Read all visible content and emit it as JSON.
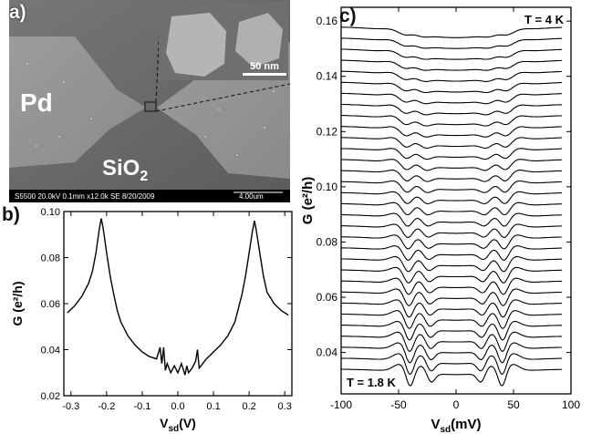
{
  "panel_a": {
    "label": "a)",
    "electrode_label": "Pd",
    "substrate_label": "SiO",
    "substrate_subscript": "2",
    "inset_scale": "50 nm",
    "info_bar": {
      "sem_info": "S5500 20.0kV 0.1mm x12.0k SE 8/20/2009",
      "scale": "4.00um"
    }
  },
  "panel_b": {
    "label": "b)"
  },
  "panel_c": {
    "label": "c)",
    "temp_top": "T = 4 K",
    "temp_bottom": "T = 1.8 K"
  },
  "chart_data": [
    {
      "type": "line",
      "panel": "b",
      "xlabel": "V",
      "xlabel_sub": "sd",
      "xlabel_unit": "(V)",
      "ylabel": "G (e²/h)",
      "xlim": [
        -0.32,
        0.32
      ],
      "ylim": [
        0.02,
        0.1
      ],
      "xticks": [
        -0.3,
        -0.2,
        -0.1,
        0.0,
        0.1,
        0.2,
        0.3
      ],
      "xtick_labels": [
        "-0.3",
        "-0.2",
        "-0.1",
        "0.0",
        "0.1",
        "0.2",
        "0.3"
      ],
      "yticks": [
        0.02,
        0.04,
        0.06,
        0.08,
        0.1
      ],
      "ytick_labels": [
        "0.02",
        "0.04",
        "0.06",
        "0.08",
        "0.10"
      ],
      "series": [
        {
          "x": [
            -0.31,
            -0.29,
            -0.27,
            -0.25,
            -0.24,
            -0.23,
            -0.22,
            -0.215,
            -0.21,
            -0.2,
            -0.19,
            -0.18,
            -0.17,
            -0.16,
            -0.14,
            -0.12,
            -0.1,
            -0.08,
            -0.06,
            -0.05,
            -0.045,
            -0.04,
            -0.035,
            -0.03,
            -0.02,
            -0.01,
            0.0,
            0.01,
            0.02,
            0.025,
            0.03,
            0.04,
            0.05,
            0.055,
            0.06,
            0.08,
            0.1,
            0.12,
            0.14,
            0.16,
            0.17,
            0.18,
            0.19,
            0.2,
            0.21,
            0.215,
            0.22,
            0.23,
            0.24,
            0.25,
            0.27,
            0.29,
            0.31
          ],
          "y": [
            0.056,
            0.059,
            0.063,
            0.069,
            0.074,
            0.082,
            0.093,
            0.097,
            0.093,
            0.082,
            0.072,
            0.064,
            0.057,
            0.052,
            0.046,
            0.042,
            0.039,
            0.037,
            0.036,
            0.041,
            0.034,
            0.041,
            0.031,
            0.034,
            0.03,
            0.033,
            0.03,
            0.034,
            0.029,
            0.033,
            0.03,
            0.032,
            0.035,
            0.04,
            0.032,
            0.036,
            0.039,
            0.042,
            0.046,
            0.052,
            0.058,
            0.064,
            0.072,
            0.082,
            0.092,
            0.096,
            0.092,
            0.082,
            0.072,
            0.065,
            0.06,
            0.057,
            0.055
          ]
        }
      ]
    },
    {
      "type": "line",
      "panel": "c",
      "xlabel": "V",
      "xlabel_sub": "sd",
      "xlabel_unit": "(mV)",
      "ylabel": "G (e²/h)",
      "xlim": [
        -100,
        100
      ],
      "ylim": [
        0.025,
        0.165
      ],
      "xticks": [
        -100,
        -50,
        0,
        50,
        100
      ],
      "xtick_labels": [
        "-100",
        "-50",
        "0",
        "50",
        "100"
      ],
      "yticks": [
        0.04,
        0.06,
        0.08,
        0.1,
        0.12,
        0.14,
        0.16
      ],
      "ytick_labels": [
        "0.04",
        "0.06",
        "0.08",
        "0.10",
        "0.12",
        "0.14",
        "0.16"
      ],
      "trace_count": 32,
      "trace_offsets_G": [
        0.158,
        0.154,
        0.15,
        0.146,
        0.142,
        0.138,
        0.134,
        0.13,
        0.126,
        0.122,
        0.118,
        0.114,
        0.11,
        0.106,
        0.102,
        0.098,
        0.094,
        0.09,
        0.086,
        0.082,
        0.078,
        0.074,
        0.07,
        0.066,
        0.062,
        0.058,
        0.054,
        0.05,
        0.046,
        0.042,
        0.038,
        0.034
      ],
      "peak_positions_mV": [
        [
          -45,
          -30,
          30,
          45
        ],
        [
          -40,
          -22,
          22,
          40
        ]
      ],
      "peak_depth_G": 0.007
    }
  ]
}
